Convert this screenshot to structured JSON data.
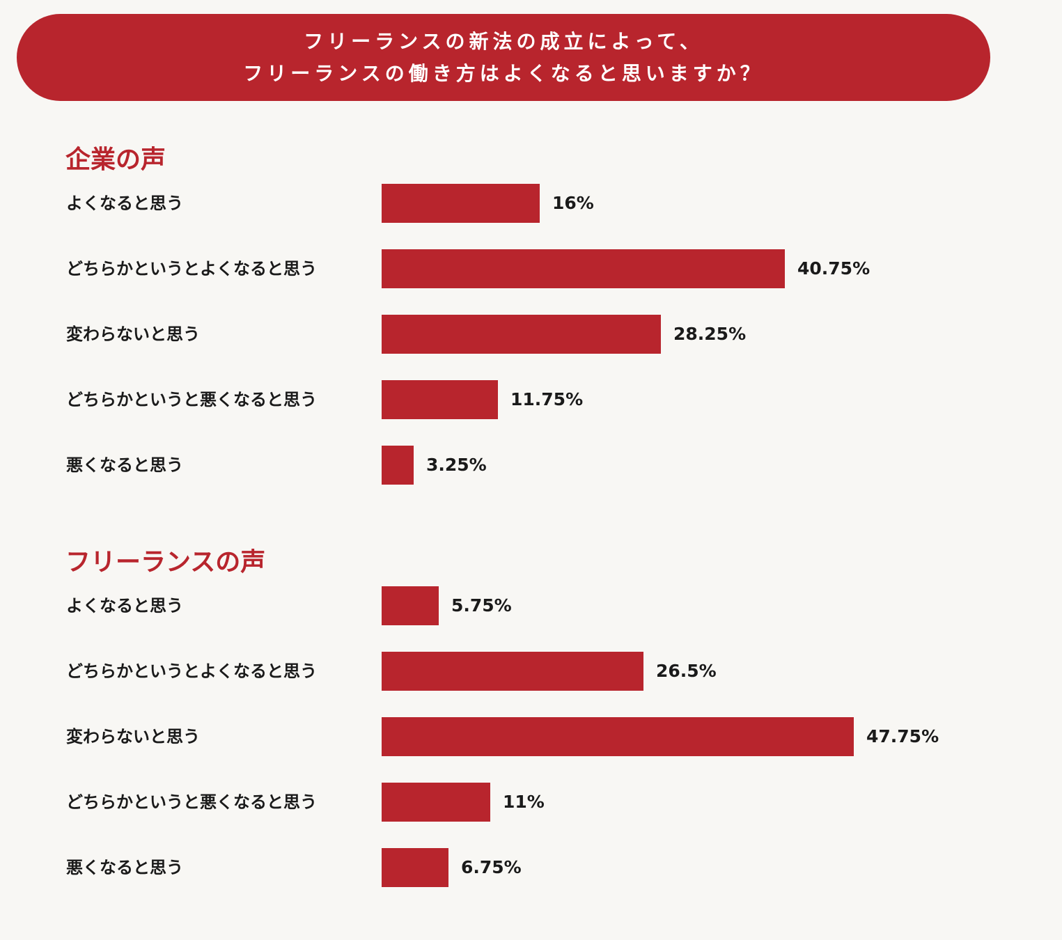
{
  "header": {
    "lines": [
      "フリーランスの新法の成立によって、",
      "フリーランスの働き方はよくなると思いますか？"
    ]
  },
  "colors": {
    "accent": "#b8252d",
    "background": "#f8f7f4",
    "text": "#1a1a1a"
  },
  "chart_data": [
    {
      "type": "bar",
      "orientation": "horizontal",
      "title": "企業の声",
      "categories": [
        "よくなると思う",
        "どちらかというとよくなると思う",
        "変わらないと思う",
        "どちらかというと悪くなると思う",
        "悪くなると思う"
      ],
      "values": [
        16,
        40.75,
        28.25,
        11.75,
        3.25
      ],
      "value_labels": [
        "16%",
        "40.75%",
        "28.25%",
        "11.75%",
        "3.25%"
      ],
      "unit": "%",
      "grid": false
    },
    {
      "type": "bar",
      "orientation": "horizontal",
      "title": "フリーランスの声",
      "categories": [
        "よくなると思う",
        "どちらかというとよくなると思う",
        "変わらないと思う",
        "どちらかというと悪くなると思う",
        "悪くなると思う"
      ],
      "values": [
        5.75,
        26.5,
        47.75,
        11,
        6.75
      ],
      "value_labels": [
        "5.75%",
        "26.5%",
        "47.75%",
        "11%",
        "6.75%"
      ],
      "unit": "%",
      "grid": false
    }
  ]
}
